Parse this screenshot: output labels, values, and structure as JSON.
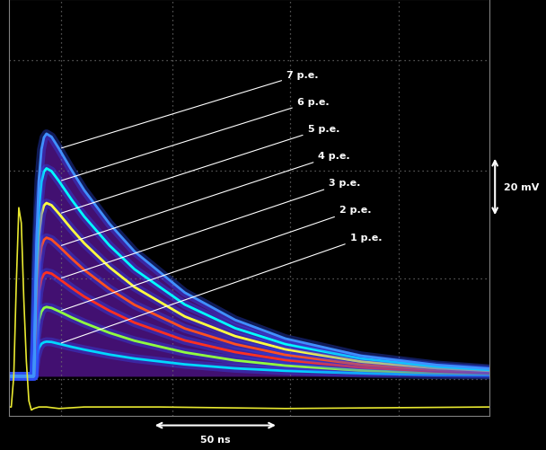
{
  "chart_data": {
    "type": "line",
    "x": [
      -10,
      0,
      1,
      2,
      3,
      4,
      5,
      7,
      10,
      15,
      20,
      30,
      40,
      60,
      80,
      100,
      130,
      160,
      181
    ],
    "xlim": [
      -10,
      181
    ],
    "ylim": [
      -13,
      123
    ],
    "xticks": [
      10.7,
      55,
      102,
      145
    ],
    "yticks": [
      -1,
      32,
      67,
      103
    ],
    "grid": true,
    "tick_labels": false,
    "series": [
      {
        "name": "1 p.e.",
        "color": "#00d8ff",
        "values": [
          0,
          0,
          6.2,
          9.2,
          10.6,
          11.1,
          11.3,
          11.2,
          10.6,
          9.6,
          8.7,
          7.1,
          5.8,
          3.9,
          2.6,
          1.8,
          1.0,
          0.5,
          0.4
        ]
      },
      {
        "name": "2 p.e.",
        "color": "#90ff40",
        "values": [
          0,
          0,
          12.4,
          18.3,
          21.1,
          22.3,
          22.6,
          22.3,
          21.2,
          19.2,
          17.4,
          14.2,
          11.6,
          7.8,
          5.2,
          3.5,
          1.9,
          1.1,
          0.7
        ]
      },
      {
        "name": "3 p.e.",
        "color": "#ff3020",
        "values": [
          0,
          0,
          18.5,
          27.5,
          31.7,
          33.4,
          33.9,
          33.5,
          31.8,
          28.8,
          26.0,
          21.4,
          17.5,
          11.7,
          7.9,
          5.3,
          2.9,
          1.6,
          1.1
        ]
      },
      {
        "name": "4 p.e.",
        "color": "#ff5020",
        "values": [
          0,
          0,
          24.7,
          36.7,
          42.3,
          44.5,
          45.2,
          44.6,
          42.4,
          38.4,
          34.7,
          28.5,
          23.3,
          15.6,
          10.5,
          7.0,
          3.8,
          2.1,
          1.4
        ]
      },
      {
        "name": "5 p.e.",
        "color": "#ffff40",
        "values": [
          0,
          0,
          30.9,
          45.8,
          52.8,
          55.7,
          56.5,
          55.8,
          53.0,
          48.0,
          43.4,
          35.6,
          29.1,
          19.5,
          13.1,
          8.8,
          4.8,
          2.7,
          1.8
        ]
      },
      {
        "name": "6 p.e.",
        "color": "#00ffff",
        "values": [
          0,
          0,
          37.1,
          55.0,
          63.4,
          66.8,
          67.8,
          66.9,
          63.6,
          57.6,
          52.1,
          42.7,
          34.9,
          23.4,
          15.7,
          10.5,
          5.8,
          3.2,
          2.1
        ]
      },
      {
        "name": "7 p.e.",
        "color": "#4090ff",
        "values": [
          0,
          0,
          43.3,
          64.2,
          74.0,
          77.9,
          79.1,
          78.1,
          74.2,
          67.2,
          60.7,
          49.8,
          40.7,
          27.3,
          18.4,
          12.3,
          6.7,
          3.7,
          2.5
        ]
      },
      {
        "color": "#e8e830",
        "x": [
          -10,
          -9,
          -8,
          -7,
          -6,
          -5,
          -4,
          -3,
          -2,
          -1,
          0,
          2,
          5,
          10,
          20,
          50,
          100,
          181
        ],
        "values": [
          -10,
          -10,
          0,
          30,
          55,
          50,
          25,
          5,
          -8,
          -11,
          -10.5,
          -10,
          -10,
          -10.5,
          -10,
          -10,
          -10.5,
          -10
        ]
      }
    ],
    "scale_bars": [
      {
        "label": "20 mV",
        "value": 20,
        "axis": "y"
      },
      {
        "label": "50 ns",
        "value": 50,
        "axis": "x"
      }
    ]
  }
}
